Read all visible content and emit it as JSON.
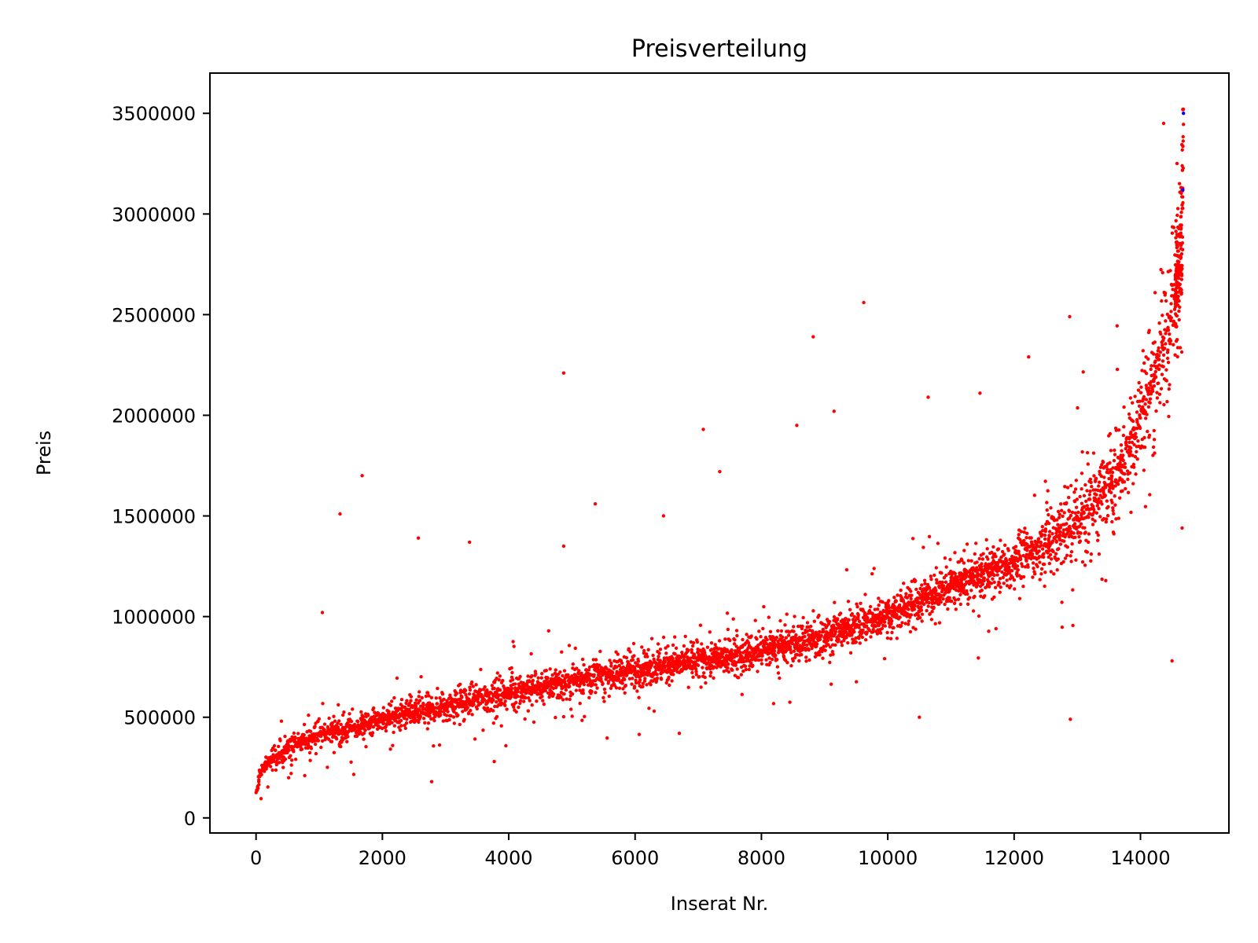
{
  "chart_data": {
    "type": "scatter",
    "title": "Preisverteilung",
    "xlabel": "Inserat Nr.",
    "ylabel": "Preis",
    "xlim": [
      -730,
      15400
    ],
    "ylim": [
      -75000,
      3700000
    ],
    "xticks": [
      0,
      2000,
      4000,
      6000,
      8000,
      10000,
      12000,
      14000
    ],
    "xtick_labels": [
      "0",
      "2000",
      "4000",
      "6000",
      "8000",
      "10000",
      "12000",
      "14000"
    ],
    "yticks": [
      0,
      500000,
      1000000,
      1500000,
      2000000,
      2500000,
      3000000,
      3500000
    ],
    "ytick_labels": [
      "0",
      "500000",
      "1000000",
      "1500000",
      "2000000",
      "2500000",
      "3000000",
      "3500000"
    ],
    "grid": false,
    "n_points": 14680,
    "series": [
      {
        "color": "#ff0000",
        "values_sample": [
          [
            0,
            100000
          ],
          [
            50,
            200000
          ],
          [
            100,
            240000
          ],
          [
            200,
            280000
          ],
          [
            500,
            340000
          ],
          [
            1000,
            420000
          ],
          [
            1500,
            440000
          ],
          [
            2000,
            490000
          ],
          [
            2500,
            520000
          ],
          [
            3000,
            550000
          ],
          [
            3500,
            590000
          ],
          [
            4000,
            620000
          ],
          [
            4500,
            650000
          ],
          [
            5000,
            680000
          ],
          [
            5500,
            710000
          ],
          [
            6000,
            730000
          ],
          [
            6500,
            760000
          ],
          [
            7000,
            780000
          ],
          [
            7500,
            800000
          ],
          [
            8000,
            830000
          ],
          [
            8500,
            860000
          ],
          [
            9000,
            900000
          ],
          [
            9500,
            960000
          ],
          [
            10000,
            1010000
          ],
          [
            10500,
            1080000
          ],
          [
            11000,
            1150000
          ],
          [
            11500,
            1210000
          ],
          [
            12000,
            1270000
          ],
          [
            12500,
            1370000
          ],
          [
            13000,
            1480000
          ],
          [
            13500,
            1640000
          ],
          [
            14000,
            1990000
          ],
          [
            14300,
            2300000
          ],
          [
            14500,
            2450000
          ],
          [
            14600,
            2700000
          ],
          [
            14650,
            2900000
          ],
          [
            14680,
            3500000
          ]
        ],
        "outliers": [
          [
            1330,
            1510000
          ],
          [
            1680,
            1700000
          ],
          [
            1050,
            1020000
          ],
          [
            2570,
            1390000
          ],
          [
            3380,
            1370000
          ],
          [
            4870,
            2210000
          ],
          [
            4870,
            1350000
          ],
          [
            5370,
            1560000
          ],
          [
            6450,
            1500000
          ],
          [
            7080,
            1930000
          ],
          [
            7340,
            1720000
          ],
          [
            8560,
            1950000
          ],
          [
            8820,
            2390000
          ],
          [
            9150,
            2020000
          ],
          [
            9620,
            2560000
          ],
          [
            10640,
            2090000
          ],
          [
            11460,
            2110000
          ],
          [
            12230,
            2290000
          ],
          [
            12880,
            2490000
          ],
          [
            12890,
            490000
          ],
          [
            2780,
            180000
          ],
          [
            3770,
            280000
          ],
          [
            6700,
            420000
          ],
          [
            10500,
            500000
          ],
          [
            14500,
            780000
          ]
        ]
      },
      {
        "color": "#0000ff",
        "values_sample": [
          [
            14680,
            3500000
          ],
          [
            14670,
            3120000
          ]
        ]
      }
    ]
  }
}
